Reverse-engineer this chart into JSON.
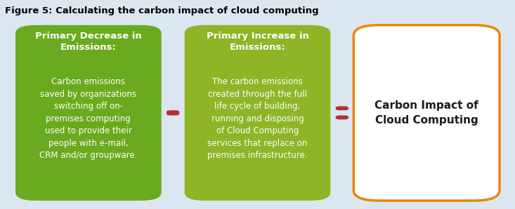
{
  "title": "Figure 5: Calculating the carbon impact of cloud computing",
  "background_color": "#dce6f1",
  "title_color": "#000000",
  "title_fontsize": 9.5,
  "box1": {
    "title": "Primary Decrease in\nEmissions:",
    "body": "Carbon emissions\nsaved by organizations\nswitching off on-\npremises computing\nused to provide their\npeople with e-mail,\nCRM and/or groupware.",
    "bg_color": "#6aaa1e",
    "text_color": "#ffffff",
    "title_fontsize": 9.5,
    "body_fontsize": 8.5
  },
  "box2": {
    "title": "Primary Increase in\nEmissions:",
    "body": "The carbon emissions\ncreated through the full\nlife cycle of building,\nrunning and disposing\nof Cloud Computing\nservices that replace on\npremises infrastructure.",
    "bg_color": "#8db526",
    "text_color": "#ffffff",
    "title_fontsize": 9.5,
    "body_fontsize": 8.5
  },
  "box3": {
    "title": "Carbon Impact of\nCloud Computing",
    "bg_color": "#ffffff",
    "border_color": "#e8880a",
    "text_color": "#1a1a1a",
    "title_fontsize": 11
  },
  "minus_color": "#b03030",
  "equals_color": "#b03030"
}
